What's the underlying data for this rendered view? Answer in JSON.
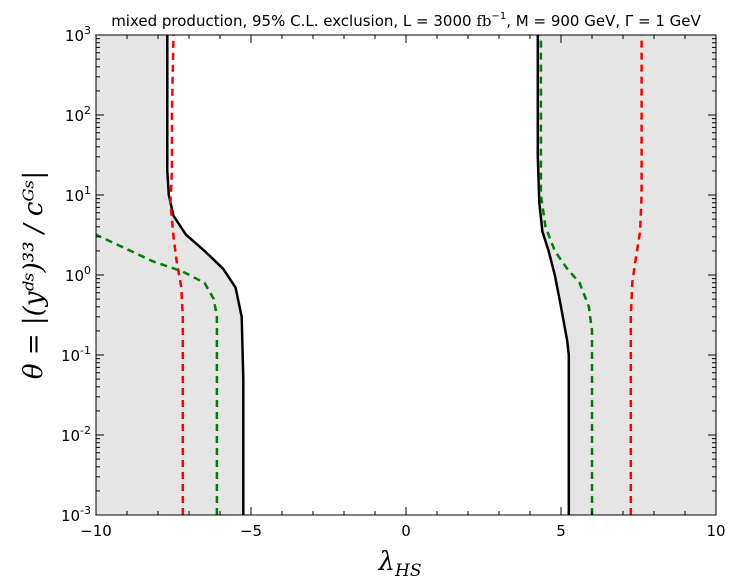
{
  "chart_data": {
    "type": "line",
    "title": "mixed production, 95% C.L. exclusion, L = 3000 fb⁻¹, M = 900 GeV, Γ = 1 GeV",
    "title_parts": {
      "prefix": "mixed production, 95% C.L. exclusion, L = 3000 ",
      "lumi_unit": "fb",
      "lumi_exp": "−1",
      "mass": ", M = 900",
      "width": " GeV, Γ = 1",
      "suffix": " GeV"
    },
    "xlabel": "λ",
    "xlabel_sub": "HS",
    "ylabel": "θ = |(yᵈˢ)³³ / cᴳˢ|",
    "xlim": [
      -10,
      10
    ],
    "ylim": [
      0.001,
      1000
    ],
    "yscale": "log",
    "x_ticks": [
      {
        "value": -10,
        "label": "−10"
      },
      {
        "value": -5,
        "label": "−5"
      },
      {
        "value": 0,
        "label": "0"
      },
      {
        "value": 5,
        "label": "5"
      },
      {
        "value": 10,
        "label": "10"
      }
    ],
    "y_ticks": [
      {
        "value": 0.001,
        "base": "10",
        "exp": "-3"
      },
      {
        "value": 0.01,
        "base": "10",
        "exp": "-2"
      },
      {
        "value": 0.1,
        "base": "10",
        "exp": "-1"
      },
      {
        "value": 1,
        "base": "10",
        "exp": "0"
      },
      {
        "value": 10,
        "base": "10",
        "exp": "1"
      },
      {
        "value": 100,
        "base": "10",
        "exp": "2"
      },
      {
        "value": 1000,
        "base": "10",
        "exp": "3"
      }
    ],
    "excluded_region_color": "#e5e5e5",
    "series": [
      {
        "name": "black-solid-left",
        "color": "#000000",
        "dash": "solid",
        "points": [
          [
            -5.25,
            0.001
          ],
          [
            -5.25,
            0.05
          ],
          [
            -5.3,
            0.3
          ],
          [
            -5.5,
            0.7
          ],
          [
            -5.9,
            1.2
          ],
          [
            -6.5,
            2.0
          ],
          [
            -7.1,
            3.2
          ],
          [
            -7.5,
            5.5
          ],
          [
            -7.65,
            10
          ],
          [
            -7.7,
            20
          ],
          [
            -7.7,
            1000
          ]
        ]
      },
      {
        "name": "black-solid-right",
        "color": "#000000",
        "dash": "solid",
        "points": [
          [
            5.25,
            0.001
          ],
          [
            5.25,
            0.1
          ],
          [
            5.2,
            0.15
          ],
          [
            5.0,
            0.4
          ],
          [
            4.8,
            1.0
          ],
          [
            4.6,
            2.0
          ],
          [
            4.4,
            3.5
          ],
          [
            4.3,
            8
          ],
          [
            4.25,
            30
          ],
          [
            4.25,
            1000
          ]
        ]
      },
      {
        "name": "green-dashed-left",
        "color": "#008000",
        "dash": "dashed",
        "points": [
          [
            -6.1,
            0.001
          ],
          [
            -6.1,
            0.3
          ],
          [
            -6.2,
            0.5
          ],
          [
            -6.5,
            0.8
          ],
          [
            -7.2,
            1.1
          ],
          [
            -8.2,
            1.5
          ],
          [
            -9.0,
            2.1
          ],
          [
            -10,
            3.2
          ]
        ]
      },
      {
        "name": "green-dashed-right",
        "color": "#008000",
        "dash": "dashed",
        "points": [
          [
            6.0,
            0.001
          ],
          [
            6.0,
            0.2
          ],
          [
            5.9,
            0.4
          ],
          [
            5.6,
            0.8
          ],
          [
            5.2,
            1.2
          ],
          [
            4.8,
            2.0
          ],
          [
            4.5,
            4.0
          ],
          [
            4.35,
            10
          ],
          [
            4.35,
            1000
          ]
        ]
      },
      {
        "name": "red-dashed-left",
        "color": "#ff0000",
        "dash": "dashed",
        "points": [
          [
            -7.2,
            0.001
          ],
          [
            -7.2,
            0.3
          ],
          [
            -7.25,
            0.7
          ],
          [
            -7.4,
            1.5
          ],
          [
            -7.5,
            3.0
          ],
          [
            -7.6,
            8
          ],
          [
            -7.55,
            20
          ],
          [
            -7.55,
            100
          ],
          [
            -7.5,
            1000
          ]
        ]
      },
      {
        "name": "red-dashed-right",
        "color": "#ff0000",
        "dash": "dashed",
        "points": [
          [
            7.25,
            0.001
          ],
          [
            7.25,
            0.3
          ],
          [
            7.3,
            0.8
          ],
          [
            7.4,
            1.5
          ],
          [
            7.55,
            3.5
          ],
          [
            7.6,
            10
          ],
          [
            7.6,
            200
          ],
          [
            7.6,
            1000
          ]
        ]
      }
    ]
  }
}
